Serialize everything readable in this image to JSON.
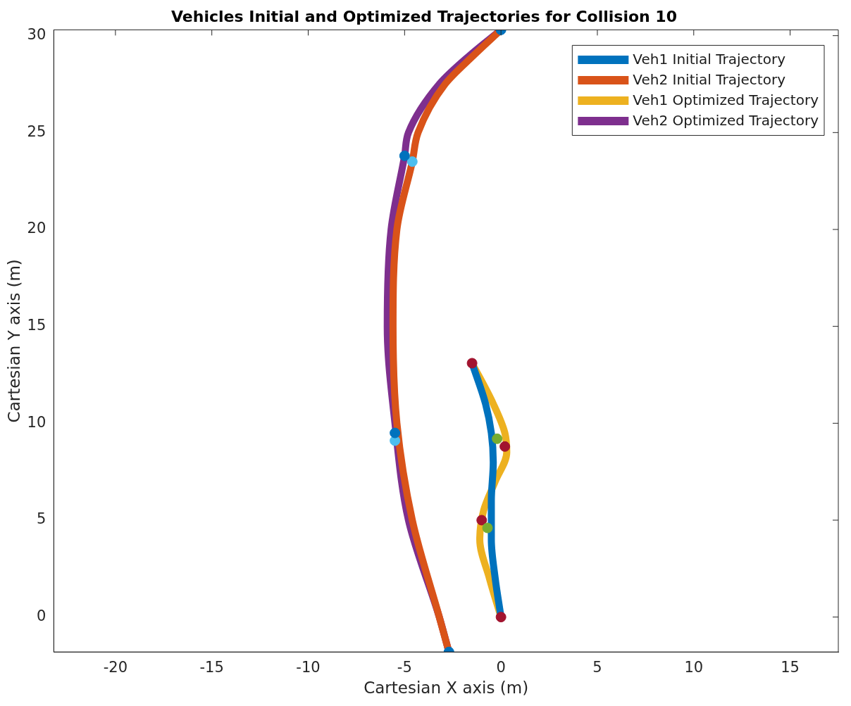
{
  "chart_data": {
    "type": "line",
    "title": "Vehicles Initial and Optimized Trajectories for Collision 10",
    "xlabel": "Cartesian X axis (m)",
    "ylabel": "Cartesian Y axis (m)",
    "xlim": [
      -23.2,
      17.5
    ],
    "ylim": [
      -1.8,
      30.3
    ],
    "xticks": [
      -20,
      -15,
      -10,
      -5,
      0,
      5,
      10,
      15
    ],
    "yticks": [
      0,
      5,
      10,
      15,
      20,
      25,
      30
    ],
    "grid": false,
    "legend": "top right",
    "marker": "none",
    "line_style": "solid",
    "series": [
      {
        "name": "Veh1 Initial Trajectory",
        "color": "#0072bd",
        "x": [
          0,
          -0.3,
          -0.5,
          -0.5,
          -0.4,
          -0.5,
          -0.8,
          -1.5
        ],
        "values": [
          0,
          2,
          4,
          6,
          8,
          9.5,
          11,
          13.1
        ]
      },
      {
        "name": "Veh2 Initial Trajectory",
        "color": "#d95319",
        "x": [
          -2.7,
          -3.2,
          -4.6,
          -5.4,
          -5.6,
          -5.4,
          -4.6,
          -4.3,
          -2.9,
          -1.4,
          0
        ],
        "values": [
          -1.8,
          0,
          5,
          10,
          15,
          20,
          23.5,
          25,
          27.5,
          29,
          30.3
        ]
      },
      {
        "name": "Veh1 Optimized Trajectory",
        "color": "#edb120",
        "x": [
          0,
          -0.6,
          -1.1,
          -0.9,
          -0.3,
          0.3,
          0.2,
          -0.4,
          -1.5
        ],
        "values": [
          0,
          2,
          4,
          5.5,
          7,
          8.5,
          9.5,
          11,
          13.1
        ]
      },
      {
        "name": "Veh2 Optimized Trajectory",
        "color": "#7e2f8e",
        "x": [
          -2.7,
          -3.2,
          -4.8,
          -5.5,
          -5.9,
          -5.7,
          -5.0,
          -4.8,
          -3.2,
          -1.6,
          0
        ],
        "values": [
          -1.8,
          0,
          5,
          10,
          15,
          20,
          23.8,
          25,
          27.5,
          29,
          30.3
        ]
      },
      {
        "type": "scatter",
        "marker": "circle",
        "color": "#0072bd",
        "x": [
          0,
          -5.0,
          -5.5,
          -2.7
        ],
        "values": [
          30.3,
          23.8,
          9.5,
          -1.8
        ]
      },
      {
        "type": "scatter",
        "marker": "circle",
        "color": "#4dbeee",
        "x": [
          -4.6,
          -5.5
        ],
        "values": [
          23.5,
          9.1
        ]
      },
      {
        "type": "scatter",
        "marker": "circle",
        "color": "#77ac30",
        "x": [
          -0.2,
          -0.7
        ],
        "values": [
          9.2,
          4.6
        ]
      },
      {
        "type": "scatter",
        "marker": "circle",
        "color": "#a2142f",
        "x": [
          -1.5,
          0.2,
          -1.0,
          0
        ],
        "values": [
          13.1,
          8.8,
          5.0,
          0
        ]
      }
    ]
  }
}
